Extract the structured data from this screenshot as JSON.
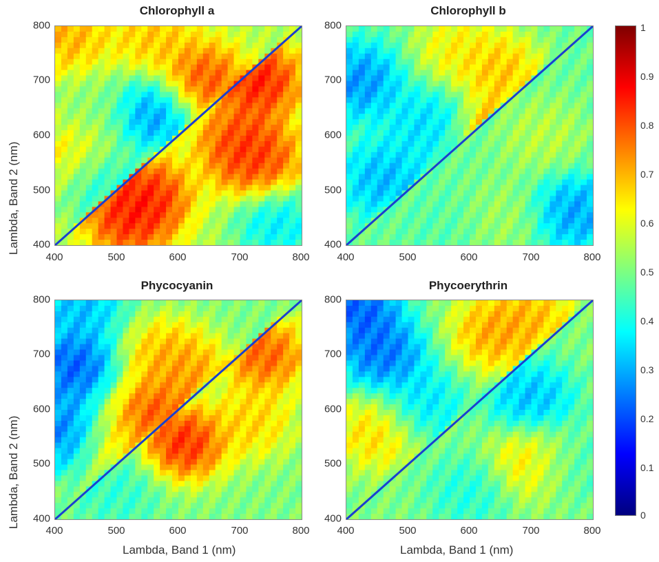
{
  "chart_data": {
    "type": "heatmap",
    "colormap": "jet",
    "colorbar": {
      "ticks": [
        "0",
        "0.1",
        "0.2",
        "0.3",
        "0.4",
        "0.5",
        "0.6",
        "0.7",
        "0.8",
        "0.9",
        "1"
      ],
      "range": [
        0,
        1
      ]
    },
    "shared_xlabel": "Lambda, Band 1 (nm)",
    "shared_ylabel": "Lambda, Band 2 (nm)",
    "x_ticks": [
      "400",
      "500",
      "600",
      "700",
      "800"
    ],
    "y_ticks": [
      "800",
      "700",
      "600",
      "500",
      "400"
    ],
    "xlim": [
      400,
      800
    ],
    "ylim": [
      400,
      800
    ],
    "panels": [
      {
        "title": "Chlorophyll a",
        "base": 0.55,
        "upper_blobs": [
          {
            "x": 420,
            "y": 780,
            "v": 0.75
          },
          {
            "x": 560,
            "y": 780,
            "v": 0.72
          },
          {
            "x": 640,
            "y": 700,
            "v": 0.88
          },
          {
            "x": 560,
            "y": 640,
            "v": 0.18
          },
          {
            "x": 460,
            "y": 650,
            "v": 0.5
          },
          {
            "x": 430,
            "y": 560,
            "v": 0.7
          },
          {
            "x": 470,
            "y": 520,
            "v": 0.32
          }
        ],
        "lower_blobs": [
          {
            "x": 520,
            "y": 450,
            "v": 0.92
          },
          {
            "x": 550,
            "y": 490,
            "v": 0.92
          },
          {
            "x": 700,
            "y": 590,
            "v": 0.88
          },
          {
            "x": 730,
            "y": 550,
            "v": 0.88
          },
          {
            "x": 730,
            "y": 700,
            "v": 0.95
          },
          {
            "x": 760,
            "y": 440,
            "v": 0.3
          }
        ]
      },
      {
        "title": "Chlorophyll b",
        "base": 0.48,
        "upper_blobs": [
          {
            "x": 580,
            "y": 760,
            "v": 0.68
          },
          {
            "x": 650,
            "y": 720,
            "v": 0.75
          },
          {
            "x": 420,
            "y": 700,
            "v": 0.2
          },
          {
            "x": 530,
            "y": 620,
            "v": 0.3
          },
          {
            "x": 460,
            "y": 520,
            "v": 0.25
          },
          {
            "x": 650,
            "y": 600,
            "v": 0.85
          }
        ],
        "lower_blobs": [
          {
            "x": 770,
            "y": 460,
            "v": 0.22
          },
          {
            "x": 650,
            "y": 450,
            "v": 0.55
          },
          {
            "x": 720,
            "y": 600,
            "v": 0.58
          },
          {
            "x": 560,
            "y": 440,
            "v": 0.45
          }
        ]
      },
      {
        "title": "Phycocyanin",
        "base": 0.5,
        "upper_blobs": [
          {
            "x": 430,
            "y": 680,
            "v": 0.12
          },
          {
            "x": 420,
            "y": 560,
            "v": 0.15
          },
          {
            "x": 580,
            "y": 700,
            "v": 0.75
          },
          {
            "x": 620,
            "y": 660,
            "v": 0.78
          },
          {
            "x": 560,
            "y": 590,
            "v": 0.9
          },
          {
            "x": 500,
            "y": 540,
            "v": 0.7
          },
          {
            "x": 440,
            "y": 790,
            "v": 0.25
          }
        ],
        "lower_blobs": [
          {
            "x": 610,
            "y": 540,
            "v": 0.95
          },
          {
            "x": 720,
            "y": 580,
            "v": 0.72
          },
          {
            "x": 740,
            "y": 700,
            "v": 0.88
          },
          {
            "x": 500,
            "y": 450,
            "v": 0.4
          }
        ]
      },
      {
        "title": "Phycoerythrin",
        "base": 0.5,
        "upper_blobs": [
          {
            "x": 460,
            "y": 700,
            "v": 0.15
          },
          {
            "x": 420,
            "y": 780,
            "v": 0.12
          },
          {
            "x": 640,
            "y": 740,
            "v": 0.78
          },
          {
            "x": 700,
            "y": 770,
            "v": 0.75
          },
          {
            "x": 450,
            "y": 560,
            "v": 0.72
          },
          {
            "x": 520,
            "y": 610,
            "v": 0.3
          }
        ],
        "lower_blobs": [
          {
            "x": 700,
            "y": 620,
            "v": 0.25
          },
          {
            "x": 600,
            "y": 450,
            "v": 0.38
          },
          {
            "x": 760,
            "y": 500,
            "v": 0.42
          },
          {
            "x": 700,
            "y": 505,
            "v": 0.72
          }
        ]
      }
    ]
  }
}
